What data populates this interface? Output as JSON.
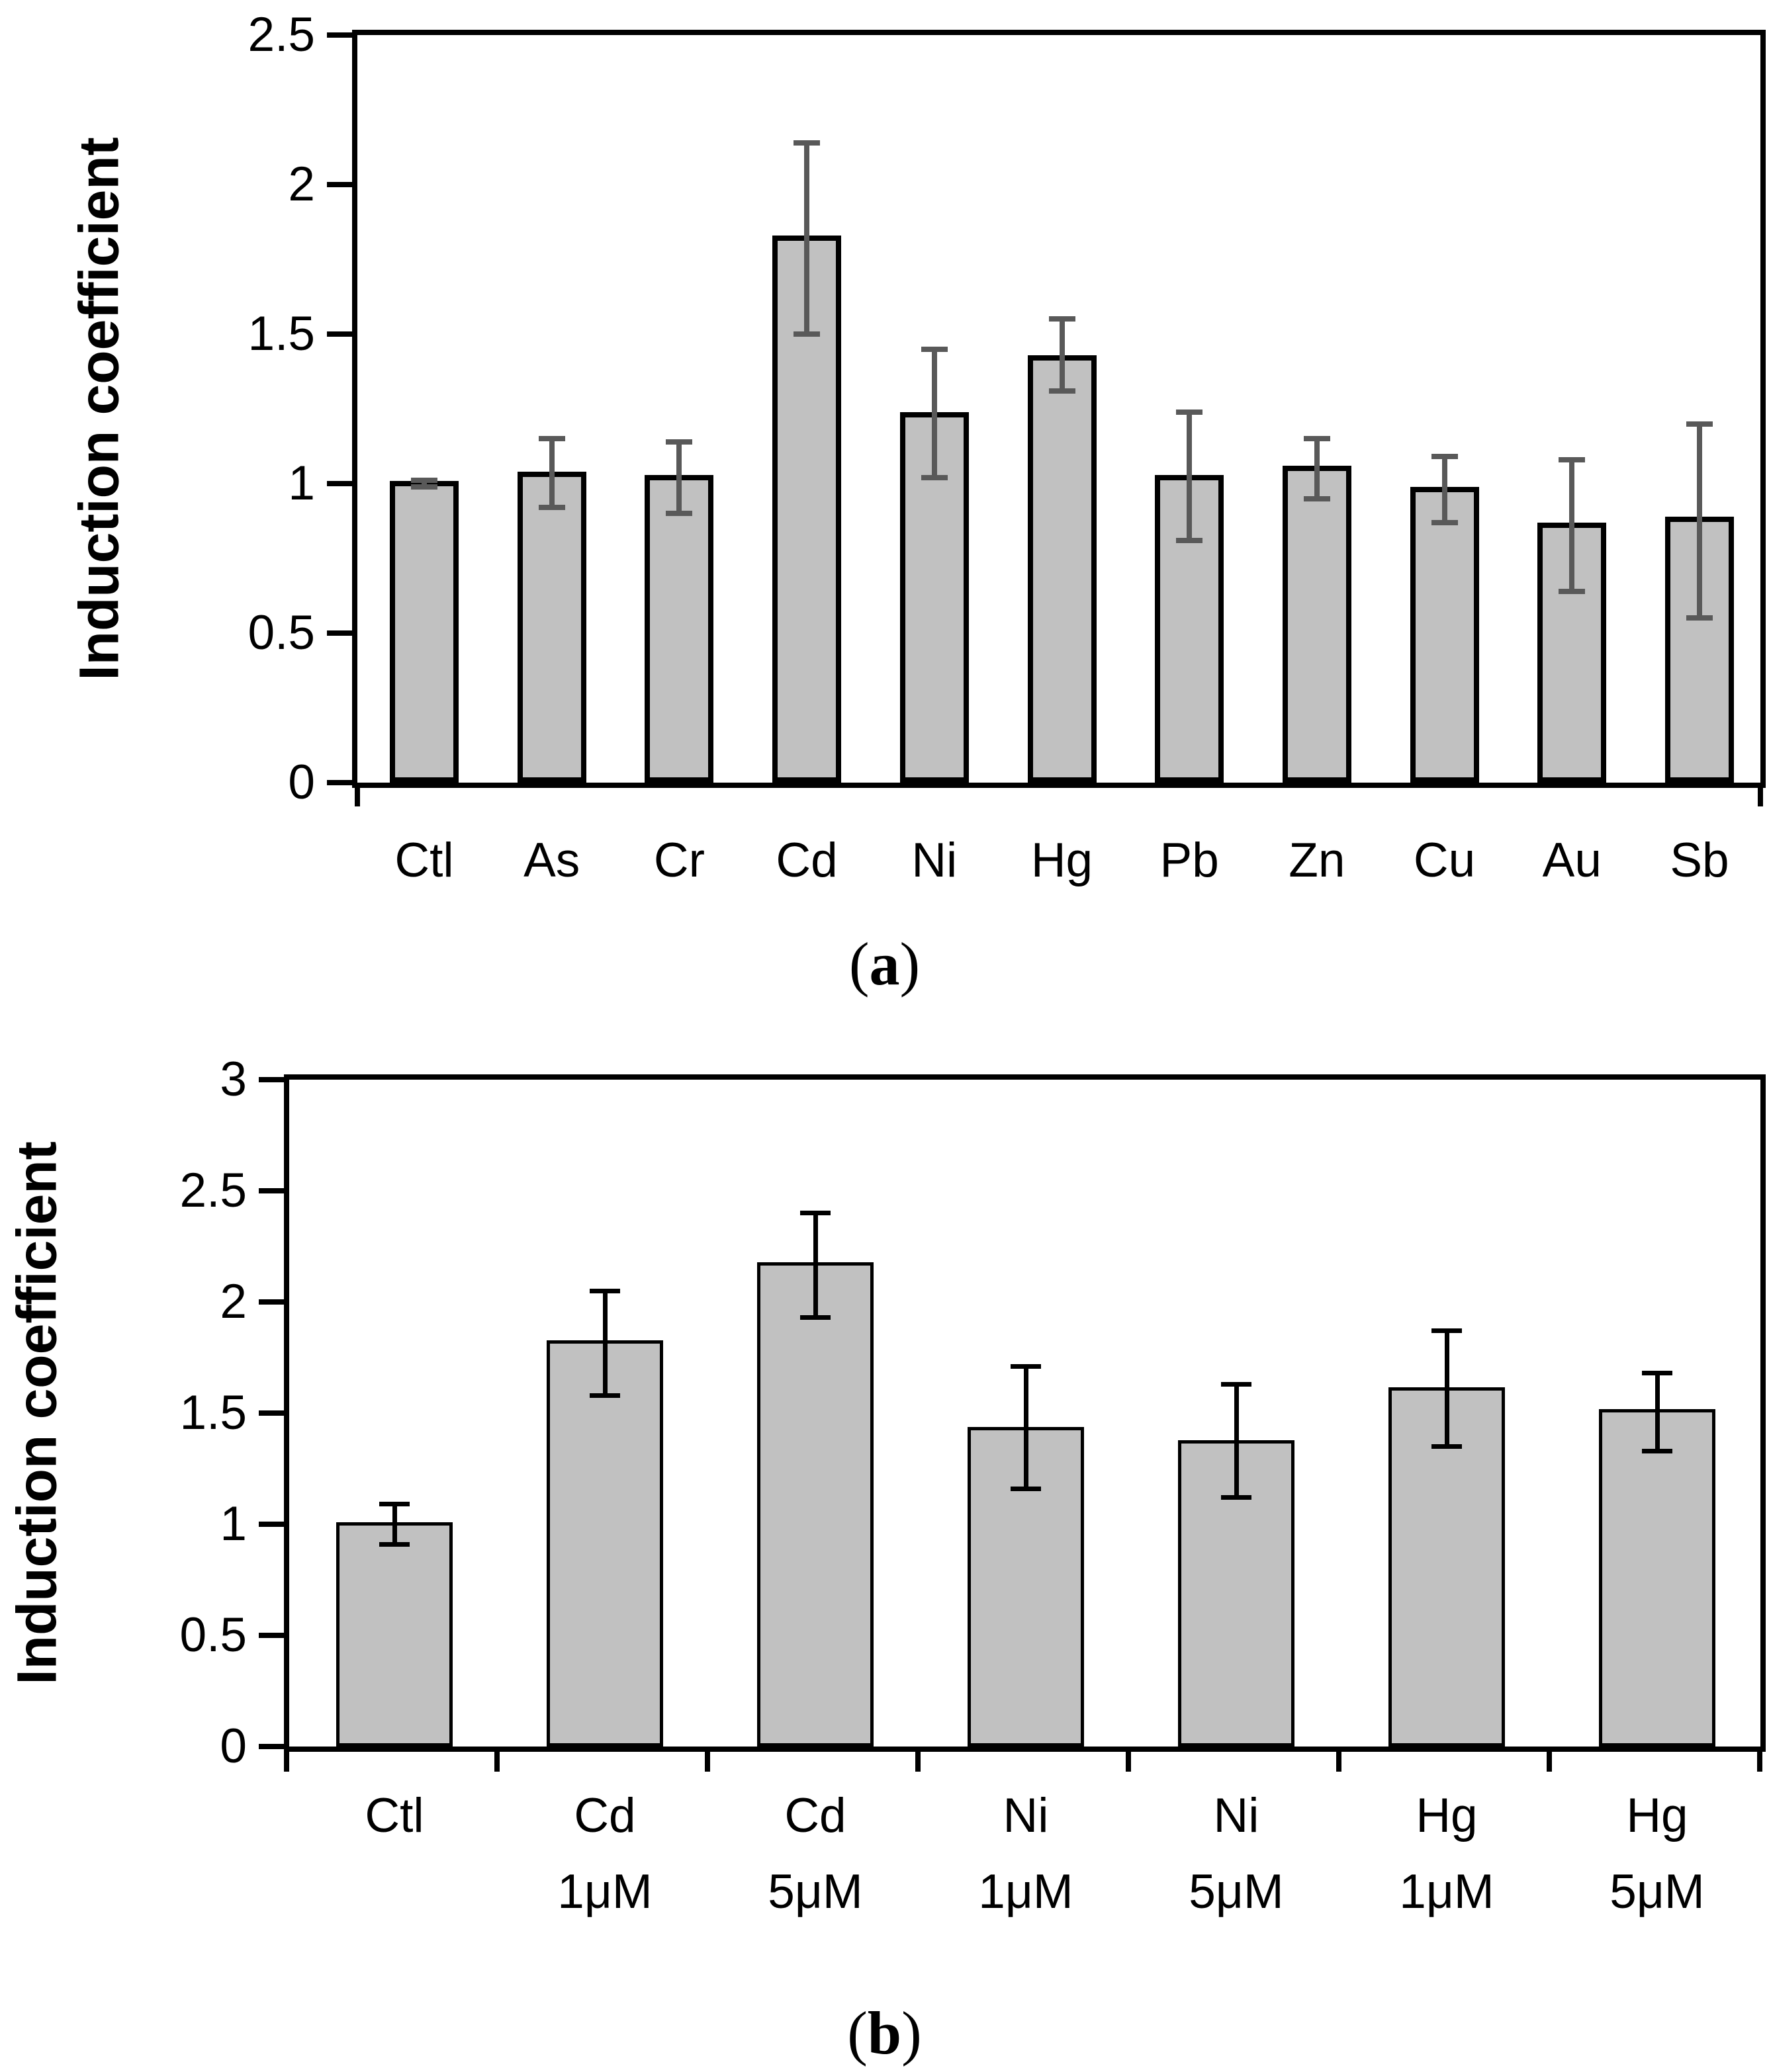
{
  "figure": {
    "background": "#ffffff",
    "text_color": "#000000"
  },
  "chart_data": [
    {
      "panel": "a",
      "type": "bar",
      "title": "",
      "xlabel": "",
      "ylabel": "Induction coefficient",
      "caption_open": "(",
      "caption_letter": "a",
      "caption_close": ")",
      "categories": [
        "Ctl",
        "As",
        "Cr",
        "Cd",
        "Ni",
        "Hg",
        "Pb",
        "Zn",
        "Cu",
        "Au",
        "Sb"
      ],
      "values": [
        1.0,
        1.03,
        1.02,
        1.82,
        1.23,
        1.42,
        1.02,
        1.05,
        0.98,
        0.86,
        0.88
      ],
      "error_low": [
        0.99,
        0.92,
        0.9,
        1.5,
        1.02,
        1.31,
        0.81,
        0.95,
        0.87,
        0.64,
        0.55
      ],
      "error_high": [
        1.01,
        1.15,
        1.14,
        2.14,
        1.45,
        1.55,
        1.24,
        1.15,
        1.09,
        1.08,
        1.2
      ],
      "ylim": [
        0,
        2.5
      ],
      "yticks": [
        0,
        0.5,
        1,
        1.5,
        2,
        2.5
      ],
      "ytick_labels": [
        "0",
        "0.5",
        "1",
        "1.5",
        "2",
        "2.5"
      ],
      "grid": false,
      "legend": null,
      "bar_fill": "#c1c1c1",
      "bar_border": "#000000",
      "error_color": "#595959"
    },
    {
      "panel": "b",
      "type": "bar",
      "title": "",
      "xlabel": "",
      "ylabel": "Induction coefficient",
      "caption_open": "(",
      "caption_letter": "b",
      "caption_close": ")",
      "categories": [
        [
          "Ctl"
        ],
        [
          "Cd",
          "1μM"
        ],
        [
          "Cd",
          "5μM"
        ],
        [
          "Ni",
          "1μM"
        ],
        [
          "Ni",
          "5μM"
        ],
        [
          "Hg",
          "1μM"
        ],
        [
          "Hg",
          "5μM"
        ]
      ],
      "values": [
        1.0,
        1.82,
        2.17,
        1.43,
        1.37,
        1.61,
        1.51
      ],
      "error_low": [
        0.91,
        1.58,
        1.93,
        1.16,
        1.12,
        1.35,
        1.33
      ],
      "error_high": [
        1.09,
        2.05,
        2.4,
        1.71,
        1.63,
        1.87,
        1.68
      ],
      "ylim": [
        0,
        3
      ],
      "yticks": [
        0,
        0.5,
        1,
        1.5,
        2,
        2.5,
        3
      ],
      "ytick_labels": [
        "0",
        "0.5",
        "1",
        "1.5",
        "2",
        "2.5",
        "3"
      ],
      "grid": false,
      "legend": null,
      "bar_fill": "#c1c1c1",
      "bar_border": "#000000",
      "error_color": "#000000"
    }
  ]
}
